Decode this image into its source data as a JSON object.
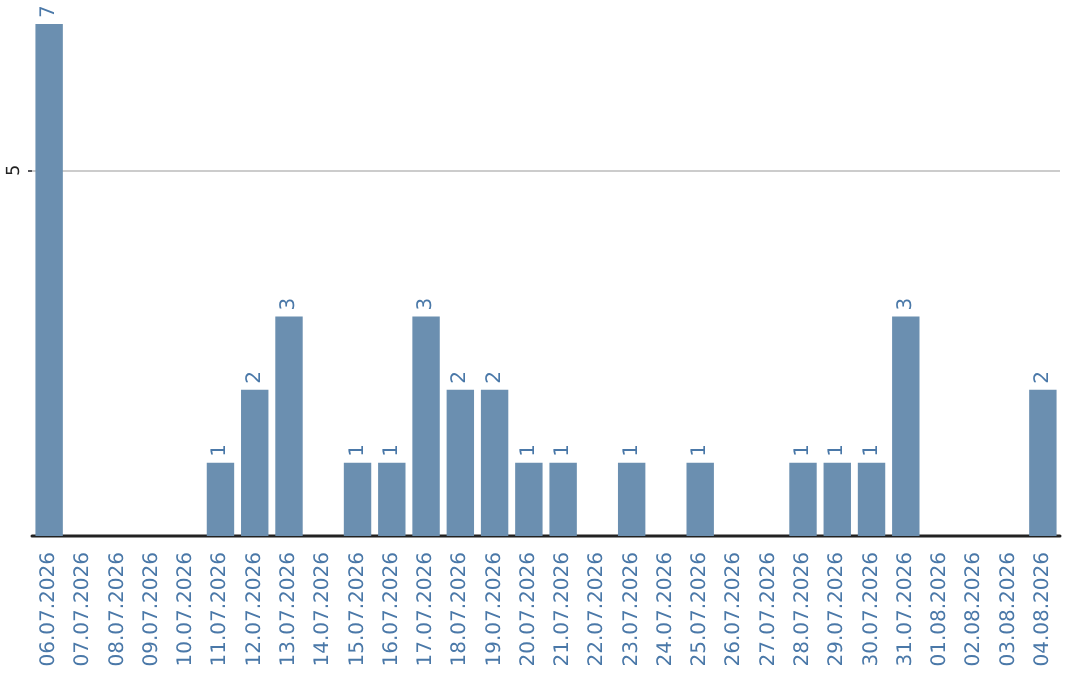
{
  "chart_data": {
    "type": "bar",
    "categories": [
      "06.07.2026",
      "07.07.2026",
      "08.07.2026",
      "09.07.2026",
      "10.07.2026",
      "11.07.2026",
      "12.07.2026",
      "13.07.2026",
      "14.07.2026",
      "15.07.2026",
      "16.07.2026",
      "17.07.2026",
      "18.07.2026",
      "19.07.2026",
      "20.07.2026",
      "21.07.2026",
      "22.07.2026",
      "23.07.2026",
      "24.07.2026",
      "25.07.2026",
      "26.07.2026",
      "27.07.2026",
      "28.07.2026",
      "29.07.2026",
      "30.07.2026",
      "31.07.2026",
      "01.08.2026",
      "02.08.2026",
      "03.08.2026",
      "04.08.2026"
    ],
    "values": [
      7,
      0,
      0,
      0,
      0,
      1,
      2,
      3,
      0,
      1,
      1,
      3,
      2,
      2,
      1,
      1,
      0,
      1,
      0,
      1,
      0,
      0,
      1,
      1,
      1,
      3,
      0,
      0,
      0,
      2
    ],
    "value_labels": [
      "7",
      null,
      null,
      null,
      null,
      "1",
      "2",
      "3",
      null,
      "1",
      "1",
      "3",
      "2",
      "2",
      "1",
      "1",
      null,
      "1",
      null,
      "1",
      null,
      null,
      "1",
      "1",
      "1",
      "3",
      null,
      null,
      null,
      "2"
    ],
    "color": "#6b8fb0",
    "ylim": [
      0,
      7
    ],
    "yticks": [
      5
    ],
    "grid": "y"
  }
}
